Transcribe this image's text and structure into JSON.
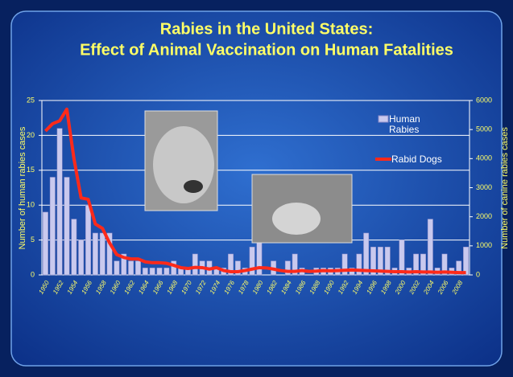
{
  "chart_data": {
    "type": "bar",
    "title": "Rabies in the United States:",
    "subtitle": "Effect of Animal Vaccination on Human Fatalities",
    "y_label": "Number of human rabies cases",
    "y2_label": "Number of canine rabies cases",
    "categories": [
      "1950",
      null,
      "1952",
      null,
      "1954",
      null,
      "1956",
      null,
      "1958",
      null,
      "1960",
      null,
      "1962",
      null,
      "1964",
      null,
      "1966",
      null,
      "1968",
      null,
      "1970",
      null,
      "1972",
      null,
      "1974",
      null,
      "1976",
      null,
      "1978",
      null,
      "1980",
      null,
      "1982",
      null,
      "1984",
      null,
      "1986",
      null,
      "1988",
      null,
      "1990",
      null,
      "1992",
      null,
      "1994",
      null,
      "1996",
      null,
      "1998",
      null,
      "2000",
      null,
      "2002",
      null,
      "2004",
      null,
      "2006",
      null,
      "2008",
      null
    ],
    "series": [
      {
        "name": "Human Rabies",
        "type": "bar",
        "color": "#c9c9ee",
        "values": [
          9,
          14,
          21,
          14,
          8,
          5,
          10,
          6,
          6,
          6,
          2,
          3,
          2,
          2,
          1,
          1,
          1,
          1,
          2,
          1,
          1,
          3,
          2,
          2,
          1,
          1,
          3,
          2,
          1,
          4,
          5,
          0,
          2,
          0,
          2,
          3,
          1,
          0,
          1,
          1,
          1,
          1,
          3,
          1,
          3,
          6,
          4,
          4,
          4,
          1,
          5,
          1,
          3,
          3,
          8,
          1,
          3,
          1,
          2,
          4
        ]
      },
      {
        "name": "Rabid Dogs",
        "type": "line",
        "axis": "y2",
        "color": "#ff2a1a",
        "values": [
          4950,
          5200,
          5300,
          5700,
          4000,
          2650,
          2600,
          1750,
          1600,
          1100,
          700,
          600,
          550,
          550,
          450,
          420,
          420,
          400,
          330,
          250,
          220,
          260,
          250,
          200,
          250,
          150,
          110,
          110,
          150,
          200,
          250,
          240,
          200,
          150,
          120,
          120,
          150,
          120,
          130,
          150,
          140,
          150,
          160,
          170,
          160,
          150,
          140,
          130,
          120,
          110,
          110,
          100,
          110,
          100,
          100,
          90,
          100,
          90,
          80,
          80
        ]
      }
    ],
    "ylim": [
      0,
      25
    ],
    "yticks": [
      0,
      5,
      10,
      15,
      20,
      25
    ],
    "y2lim": [
      0,
      6000
    ],
    "y2ticks": [
      0,
      1000,
      2000,
      3000,
      4000,
      5000,
      6000
    ],
    "grid": true
  }
}
